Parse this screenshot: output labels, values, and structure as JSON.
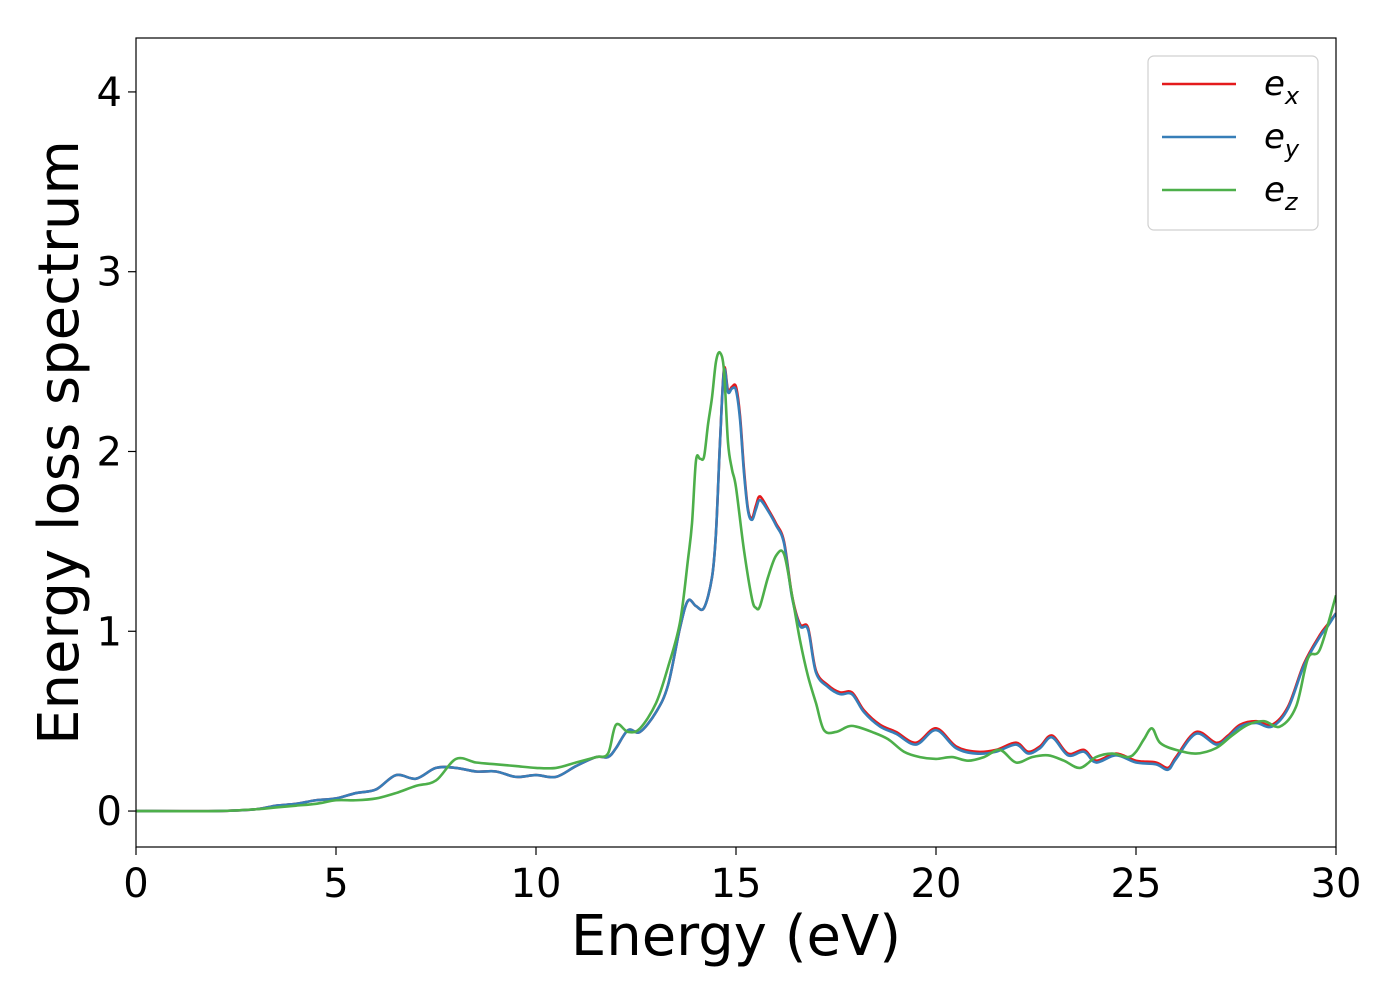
{
  "chart_data": {
    "type": "line",
    "xlabel": "Energy (eV)",
    "ylabel": "Energy loss spectrum",
    "xlim": [
      0,
      30
    ],
    "ylim": [
      -0.2,
      4.3
    ],
    "xticks": [
      0,
      5,
      10,
      15,
      20,
      25,
      30
    ],
    "yticks": [
      0,
      1,
      2,
      3,
      4
    ],
    "grid": false,
    "legend_position": "top-right",
    "series": [
      {
        "name": "e_x",
        "legend_base": "e",
        "legend_sub": "x",
        "color": "#e41a1c",
        "x": [
          0,
          2,
          3,
          3.5,
          4,
          4.5,
          5,
          5.5,
          6,
          6.5,
          7,
          7.5,
          8,
          8.5,
          9,
          9.5,
          10,
          10.5,
          11,
          11.5,
          11.8,
          12,
          12.3,
          12.6,
          13,
          13.3,
          13.6,
          13.8,
          14,
          14.2,
          14.4,
          14.5,
          14.6,
          14.7,
          14.8,
          14.9,
          15,
          15.1,
          15.2,
          15.3,
          15.4,
          15.5,
          15.6,
          15.8,
          16,
          16.2,
          16.4,
          16.6,
          16.8,
          17,
          17.3,
          17.6,
          17.9,
          18.2,
          18.6,
          19,
          19.5,
          20,
          20.5,
          21,
          21.5,
          22,
          22.3,
          22.6,
          22.9,
          23.3,
          23.7,
          24,
          24.5,
          25,
          25.5,
          25.8,
          26,
          26.5,
          27,
          27.3,
          27.6,
          28,
          28.4,
          28.8,
          29.2,
          29.6,
          29.8,
          30
        ],
        "y": [
          0,
          0,
          0.01,
          0.03,
          0.04,
          0.06,
          0.07,
          0.1,
          0.12,
          0.2,
          0.18,
          0.24,
          0.24,
          0.22,
          0.22,
          0.19,
          0.2,
          0.19,
          0.25,
          0.3,
          0.3,
          0.35,
          0.45,
          0.44,
          0.55,
          0.7,
          1.02,
          1.17,
          1.14,
          1.13,
          1.3,
          1.55,
          2.05,
          2.46,
          2.34,
          2.36,
          2.36,
          2.2,
          1.9,
          1.68,
          1.63,
          1.7,
          1.75,
          1.68,
          1.6,
          1.5,
          1.2,
          1.04,
          1.02,
          0.78,
          0.7,
          0.66,
          0.66,
          0.56,
          0.48,
          0.44,
          0.38,
          0.46,
          0.36,
          0.33,
          0.34,
          0.38,
          0.33,
          0.36,
          0.42,
          0.32,
          0.34,
          0.28,
          0.32,
          0.28,
          0.27,
          0.24,
          0.3,
          0.44,
          0.38,
          0.42,
          0.48,
          0.5,
          0.48,
          0.58,
          0.82,
          0.98,
          1.04,
          1.1
        ]
      },
      {
        "name": "e_y",
        "legend_base": "e",
        "legend_sub": "y",
        "color": "#377eb8",
        "x": [
          0,
          2,
          3,
          3.5,
          4,
          4.5,
          5,
          5.5,
          6,
          6.5,
          7,
          7.5,
          8,
          8.5,
          9,
          9.5,
          10,
          10.5,
          11,
          11.5,
          11.8,
          12,
          12.3,
          12.6,
          13,
          13.3,
          13.6,
          13.8,
          14,
          14.2,
          14.4,
          14.5,
          14.6,
          14.7,
          14.8,
          14.9,
          15,
          15.1,
          15.2,
          15.3,
          15.4,
          15.5,
          15.6,
          15.8,
          16,
          16.2,
          16.4,
          16.6,
          16.8,
          17,
          17.3,
          17.6,
          17.9,
          18.2,
          18.6,
          19,
          19.5,
          20,
          20.5,
          21,
          21.5,
          22,
          22.3,
          22.6,
          22.9,
          23.3,
          23.7,
          24,
          24.5,
          25,
          25.5,
          25.8,
          26,
          26.5,
          27,
          27.3,
          27.6,
          28,
          28.4,
          28.8,
          29.2,
          29.6,
          29.8,
          30
        ],
        "y": [
          0,
          0,
          0.01,
          0.03,
          0.04,
          0.06,
          0.07,
          0.1,
          0.12,
          0.2,
          0.18,
          0.24,
          0.24,
          0.22,
          0.22,
          0.19,
          0.2,
          0.19,
          0.25,
          0.3,
          0.3,
          0.35,
          0.45,
          0.44,
          0.55,
          0.7,
          1.02,
          1.17,
          1.14,
          1.13,
          1.3,
          1.55,
          2.05,
          2.45,
          2.33,
          2.35,
          2.34,
          2.18,
          1.88,
          1.67,
          1.62,
          1.68,
          1.73,
          1.67,
          1.59,
          1.49,
          1.19,
          1.03,
          1.01,
          0.77,
          0.69,
          0.65,
          0.65,
          0.55,
          0.47,
          0.43,
          0.37,
          0.45,
          0.35,
          0.32,
          0.33,
          0.37,
          0.32,
          0.35,
          0.41,
          0.31,
          0.33,
          0.27,
          0.31,
          0.27,
          0.26,
          0.23,
          0.29,
          0.43,
          0.37,
          0.41,
          0.47,
          0.49,
          0.47,
          0.57,
          0.81,
          0.97,
          1.03,
          1.1
        ]
      },
      {
        "name": "e_z",
        "legend_base": "e",
        "legend_sub": "z",
        "color": "#4daf4a",
        "x": [
          0,
          2,
          3,
          3.5,
          4,
          4.5,
          5,
          5.5,
          6,
          6.5,
          7,
          7.5,
          8,
          8.5,
          9,
          9.5,
          10,
          10.5,
          11,
          11.5,
          11.8,
          12,
          12.3,
          12.6,
          13,
          13.3,
          13.6,
          13.8,
          13.9,
          14,
          14.1,
          14.2,
          14.3,
          14.4,
          14.5,
          14.6,
          14.7,
          14.8,
          14.9,
          15,
          15.2,
          15.4,
          15.5,
          15.6,
          15.8,
          16,
          16.2,
          16.4,
          16.6,
          16.8,
          17,
          17.2,
          17.5,
          17.8,
          18,
          18.4,
          18.8,
          19.2,
          19.6,
          20,
          20.4,
          20.8,
          21.2,
          21.6,
          22,
          22.4,
          22.8,
          23.2,
          23.6,
          24,
          24.4,
          24.8,
          25,
          25.2,
          25.4,
          25.6,
          26,
          26.5,
          27,
          27.4,
          27.8,
          28.2,
          28.6,
          29,
          29.3,
          29.6,
          30
        ],
        "y": [
          0,
          0,
          0.01,
          0.02,
          0.03,
          0.04,
          0.06,
          0.06,
          0.07,
          0.1,
          0.14,
          0.17,
          0.29,
          0.27,
          0.26,
          0.25,
          0.24,
          0.24,
          0.27,
          0.3,
          0.32,
          0.48,
          0.44,
          0.46,
          0.6,
          0.8,
          1.05,
          1.4,
          1.6,
          1.95,
          1.96,
          1.97,
          2.15,
          2.3,
          2.5,
          2.55,
          2.45,
          2.05,
          1.9,
          1.8,
          1.45,
          1.18,
          1.13,
          1.14,
          1.3,
          1.42,
          1.43,
          1.2,
          0.95,
          0.75,
          0.6,
          0.45,
          0.44,
          0.47,
          0.47,
          0.44,
          0.4,
          0.33,
          0.3,
          0.29,
          0.3,
          0.28,
          0.3,
          0.34,
          0.27,
          0.3,
          0.31,
          0.28,
          0.24,
          0.3,
          0.32,
          0.3,
          0.33,
          0.4,
          0.46,
          0.38,
          0.34,
          0.32,
          0.35,
          0.42,
          0.48,
          0.5,
          0.47,
          0.58,
          0.85,
          0.9,
          1.2
        ]
      }
    ]
  }
}
